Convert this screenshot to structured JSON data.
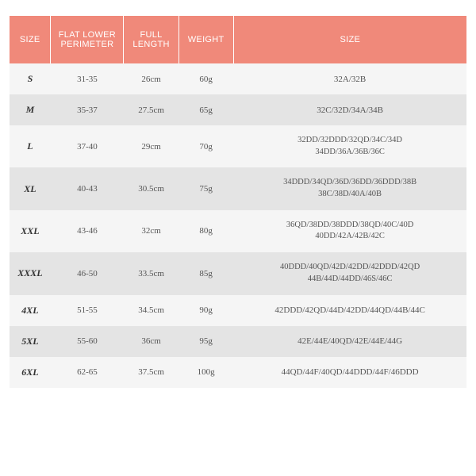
{
  "table": {
    "type": "table",
    "header_bg": "#f0897a",
    "header_fg": "#ffffff",
    "stripe_light": "#f5f5f5",
    "stripe_dark": "#e4e4e4",
    "columns": [
      {
        "key": "size_label",
        "label": "SIZE",
        "width": "9%"
      },
      {
        "key": "perimeter",
        "label": "FLAT LOWER PERIMETER",
        "width": "16%"
      },
      {
        "key": "length",
        "label": "FULL LENGTH",
        "width": "12%"
      },
      {
        "key": "weight",
        "label": "WEIGHT",
        "width": "12%"
      },
      {
        "key": "bra_size",
        "label": "SIZE",
        "width": "51%"
      }
    ],
    "rows": [
      {
        "size_label": "S",
        "perimeter": "31-35",
        "length": "26cm",
        "weight": "60g",
        "bra_size": "32A/32B"
      },
      {
        "size_label": "M",
        "perimeter": "35-37",
        "length": "27.5cm",
        "weight": "65g",
        "bra_size": "32C/32D/34A/34B"
      },
      {
        "size_label": "L",
        "perimeter": "37-40",
        "length": "29cm",
        "weight": "70g",
        "bra_size": "32DD/32DDD/32QD/34C/34D\n34DD/36A/36B/36C"
      },
      {
        "size_label": "XL",
        "perimeter": "40-43",
        "length": "30.5cm",
        "weight": "75g",
        "bra_size": "34DDD/34QD/36D/36DD/36DDD/38B\n38C/38D/40A/40B"
      },
      {
        "size_label": "XXL",
        "perimeter": "43-46",
        "length": "32cm",
        "weight": "80g",
        "bra_size": "36QD/38DD/38DDD/38QD/40C/40D\n40DD/42A/42B/42C"
      },
      {
        "size_label": "XXXL",
        "perimeter": "46-50",
        "length": "33.5cm",
        "weight": "85g",
        "bra_size": "40DDD/40QD/42D/42DD/42DDD/42QD\n44B/44D/44DD/46S/46C"
      },
      {
        "size_label": "4XL",
        "perimeter": "51-55",
        "length": "34.5cm",
        "weight": "90g",
        "bra_size": "42DDD/42QD/44D/42DD/44QD/44B/44C"
      },
      {
        "size_label": "5XL",
        "perimeter": "55-60",
        "length": "36cm",
        "weight": "95g",
        "bra_size": "42E/44E/40QD/42E/44E/44G"
      },
      {
        "size_label": "6XL",
        "perimeter": "62-65",
        "length": "37.5cm",
        "weight": "100g",
        "bra_size": "44QD/44F/40QD/44DDD/44F/46DDD"
      }
    ]
  }
}
